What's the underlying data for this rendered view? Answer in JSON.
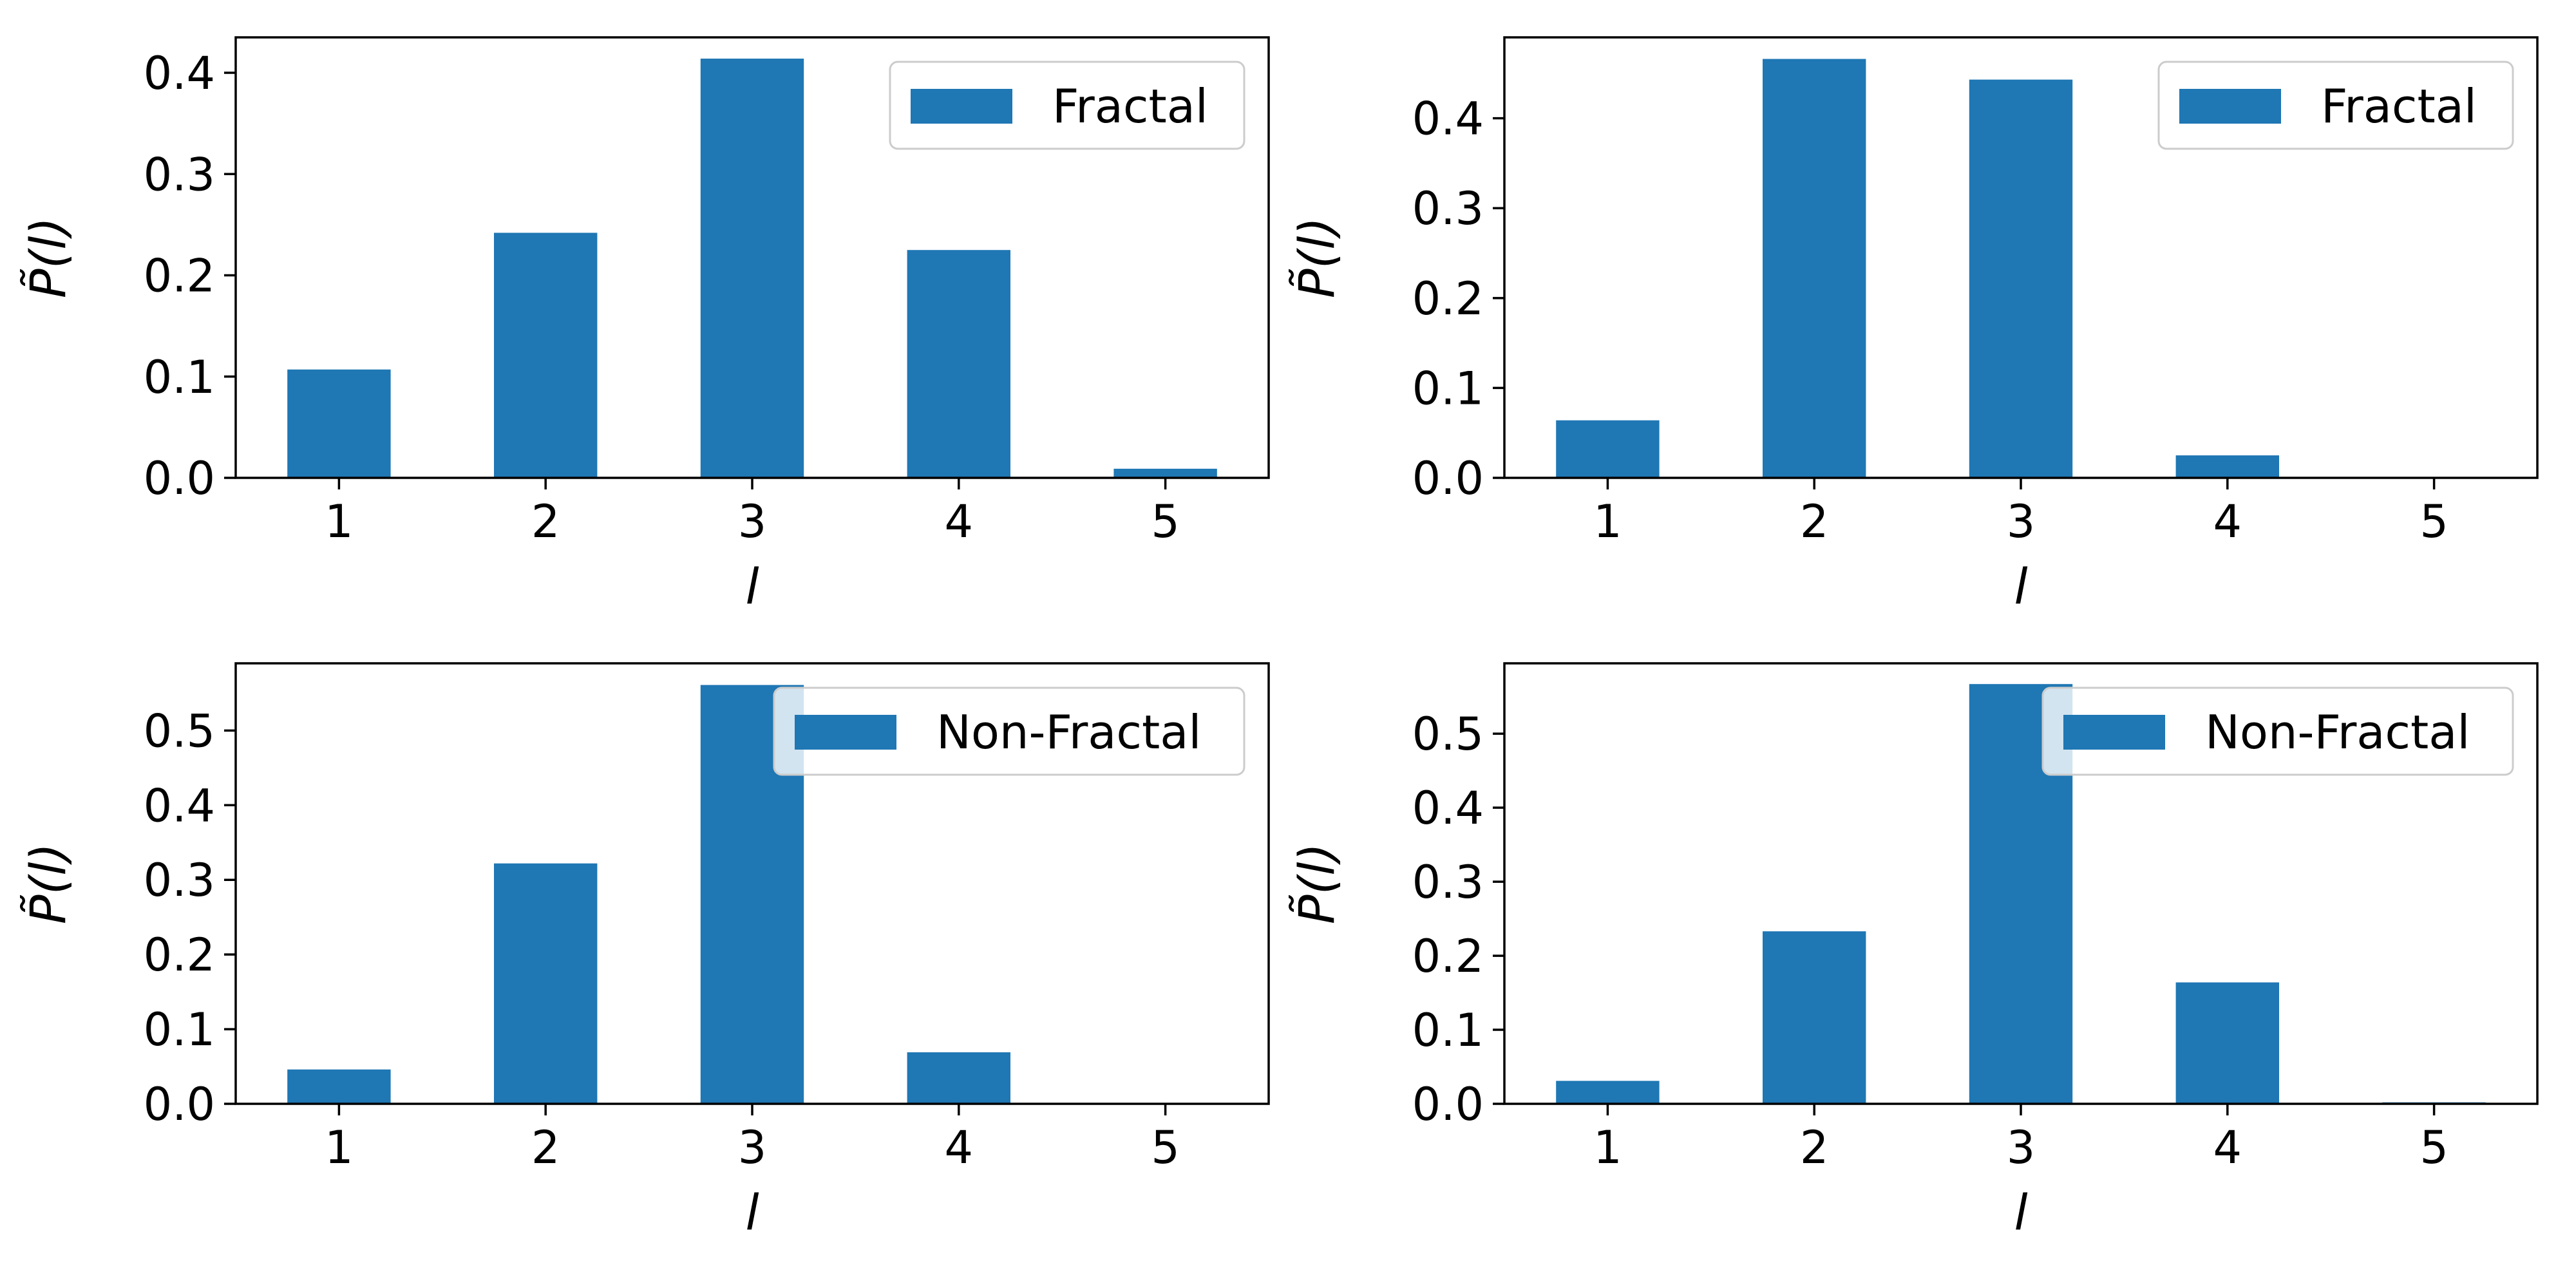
{
  "chart_data": [
    {
      "type": "bar",
      "categories": [
        "1",
        "2",
        "3",
        "4",
        "5"
      ],
      "series": [
        {
          "name": "Fractal",
          "values": [
            0.107,
            0.242,
            0.414,
            0.225,
            0.009
          ]
        }
      ],
      "xlabel": "l",
      "ylabel": "P̃(l)",
      "ylim": [
        0,
        0.435
      ],
      "yticks": [
        "0.0",
        "0.1",
        "0.2",
        "0.3",
        "0.4"
      ],
      "grid": false,
      "legend_position": "top-right",
      "color": "#1f77b4"
    },
    {
      "type": "bar",
      "categories": [
        "1",
        "2",
        "3",
        "4",
        "5"
      ],
      "series": [
        {
          "name": "Fractal",
          "values": [
            0.064,
            0.466,
            0.443,
            0.025,
            0.0
          ]
        }
      ],
      "xlabel": "l",
      "ylabel": "P̃(l)",
      "ylim": [
        0,
        0.49
      ],
      "yticks": [
        "0.0",
        "0.1",
        "0.2",
        "0.3",
        "0.4"
      ],
      "grid": false,
      "legend_position": "top-right",
      "color": "#1f77b4"
    },
    {
      "type": "bar",
      "categories": [
        "1",
        "2",
        "3",
        "4",
        "5"
      ],
      "series": [
        {
          "name": "Non-Fractal",
          "values": [
            0.046,
            0.322,
            0.561,
            0.069,
            0.0
          ]
        }
      ],
      "xlabel": "l",
      "ylabel": "P̃(l)",
      "ylim": [
        0,
        0.59
      ],
      "yticks": [
        "0.0",
        "0.1",
        "0.2",
        "0.3",
        "0.4",
        "0.5"
      ],
      "grid": false,
      "legend_position": "top-right",
      "color": "#1f77b4"
    },
    {
      "type": "bar",
      "categories": [
        "1",
        "2",
        "3",
        "4",
        "5"
      ],
      "series": [
        {
          "name": "Non-Fractal",
          "values": [
            0.031,
            0.233,
            0.567,
            0.164,
            0.002
          ]
        }
      ],
      "xlabel": "l",
      "ylabel": "P̃(l)",
      "ylim": [
        0,
        0.595
      ],
      "yticks": [
        "0.0",
        "0.1",
        "0.2",
        "0.3",
        "0.4",
        "0.5"
      ],
      "grid": false,
      "legend_position": "top-right",
      "color": "#1f77b4"
    }
  ]
}
